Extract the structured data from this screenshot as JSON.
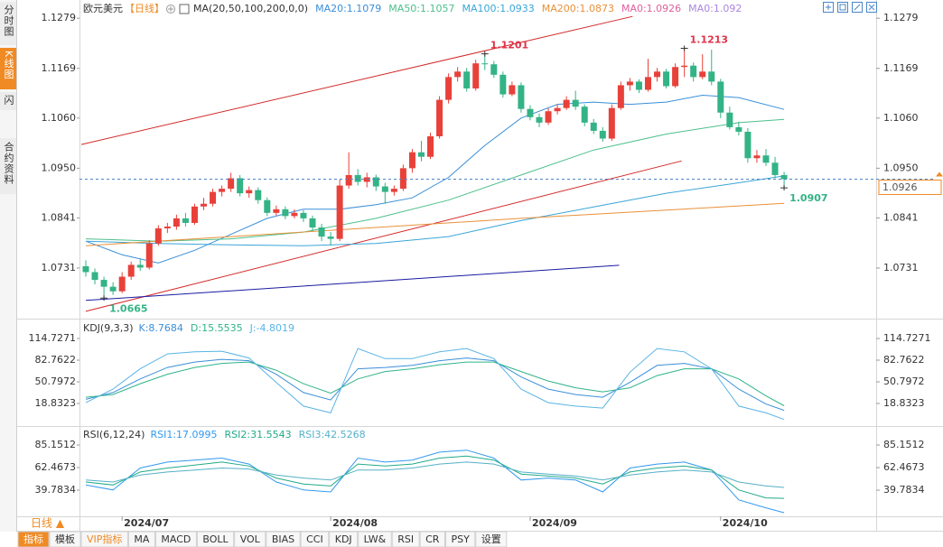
{
  "ui": {
    "sidebar": [
      "分时图",
      "K线图",
      "闪",
      "合约资料"
    ],
    "period_button": "日线 ▲",
    "tabs": [
      "指标",
      "模板",
      "VIP指标",
      "MA",
      "MACD",
      "BOLL",
      "VOL",
      "BIAS",
      "CCI",
      "KDJ",
      "LW&",
      "RSI",
      "CR",
      "PSY",
      "设置"
    ]
  },
  "chart_data": [
    {
      "type": "candlestick",
      "title": "欧元美元",
      "period": "【日线】",
      "indicator": "MA(20,50,100,200,0,0)",
      "up_color": "#e8413a",
      "down_color": "#33b386",
      "ylim": [
        1.0622,
        1.1319
      ],
      "yticks": [
        1.1279,
        1.1169,
        {
          "value": 1.106,
          "label": "1.1060"
        },
        {
          "value": 1.095,
          "label": "1.0950"
        },
        1.0841,
        1.0731
      ],
      "categories": [
        null,
        null,
        null,
        null,
        "2024/07",
        null,
        null,
        null,
        null,
        null,
        null,
        null,
        null,
        null,
        null,
        null,
        null,
        null,
        null,
        null,
        null,
        null,
        null,
        null,
        null,
        null,
        null,
        "2024/08",
        null,
        null,
        null,
        null,
        null,
        null,
        null,
        null,
        null,
        null,
        null,
        null,
        null,
        null,
        null,
        null,
        null,
        null,
        null,
        null,
        null,
        "2024/09",
        null,
        null,
        null,
        null,
        null,
        null,
        null,
        null,
        null,
        null,
        null,
        null,
        null,
        null,
        null,
        null,
        null,
        null,
        null,
        null,
        "2024/10",
        null,
        null,
        null,
        null,
        null,
        null,
        null
      ],
      "candles": [
        [
          1.0735,
          1.0748,
          1.0712,
          1.0722
        ],
        [
          1.0722,
          1.073,
          1.0695,
          1.0705
        ],
        [
          1.0705,
          1.0712,
          1.0665,
          1.069
        ],
        [
          1.069,
          1.07,
          1.0672,
          1.068
        ],
        [
          1.068,
          1.0722,
          1.0676,
          1.0712
        ],
        [
          1.0712,
          1.0745,
          1.0705,
          1.0738
        ],
        [
          1.0738,
          1.075,
          1.0725,
          1.0732
        ],
        [
          1.0732,
          1.0792,
          1.0728,
          1.0785
        ],
        [
          1.0785,
          1.0825,
          1.078,
          1.0818
        ],
        [
          1.0818,
          1.083,
          1.0808,
          1.0822
        ],
        [
          1.0822,
          1.0848,
          1.0815,
          1.084
        ],
        [
          1.084,
          1.0852,
          1.0822,
          1.083
        ],
        [
          1.083,
          1.0872,
          1.0826,
          1.0866
        ],
        [
          1.0866,
          1.0885,
          1.0858,
          1.0872
        ],
        [
          1.0872,
          1.0905,
          1.0866,
          1.0898
        ],
        [
          1.0898,
          1.0912,
          1.0888,
          1.0905
        ],
        [
          1.0905,
          1.094,
          1.0898,
          1.0928
        ],
        [
          1.0928,
          1.0935,
          1.0888,
          1.0895
        ],
        [
          1.0895,
          1.091,
          1.0885,
          1.0902
        ],
        [
          1.0902,
          1.0908,
          1.0872,
          1.088
        ],
        [
          1.088,
          1.0886,
          1.0845,
          1.0852
        ],
        [
          1.0852,
          1.0868,
          1.0846,
          1.086
        ],
        [
          1.086,
          1.0866,
          1.0838,
          1.0845
        ],
        [
          1.0845,
          1.086,
          1.084,
          1.0852
        ],
        [
          1.0852,
          1.0858,
          1.0832,
          1.084
        ],
        [
          1.084,
          1.0846,
          1.0812,
          1.082
        ],
        [
          1.082,
          1.0828,
          1.079,
          1.08
        ],
        [
          1.08,
          1.081,
          1.078,
          1.0795
        ],
        [
          1.0795,
          1.0925,
          1.079,
          1.0912
        ],
        [
          1.0912,
          1.0985,
          1.0905,
          1.0935
        ],
        [
          1.0935,
          1.0948,
          1.0912,
          1.092
        ],
        [
          1.092,
          1.094,
          1.0908,
          1.093
        ],
        [
          1.093,
          1.0936,
          1.09,
          1.091
        ],
        [
          1.091,
          1.0918,
          1.0872,
          1.0898
        ],
        [
          1.0898,
          1.0912,
          1.089,
          1.0905
        ],
        [
          1.0905,
          1.0958,
          1.09,
          1.095
        ],
        [
          1.095,
          1.0992,
          1.094,
          1.0985
        ],
        [
          1.0985,
          1.101,
          1.0965,
          1.0975
        ],
        [
          1.0975,
          1.1028,
          1.097,
          1.102
        ],
        [
          1.102,
          1.1108,
          1.1015,
          1.11
        ],
        [
          1.11,
          1.1158,
          1.1092,
          1.115
        ],
        [
          1.115,
          1.1172,
          1.114,
          1.1162
        ],
        [
          1.1162,
          1.117,
          1.1118,
          1.1125
        ],
        [
          1.1125,
          1.1188,
          1.112,
          1.118
        ],
        [
          1.118,
          1.1201,
          1.1165,
          1.1178
        ],
        [
          1.1178,
          1.1185,
          1.1148,
          1.1155
        ],
        [
          1.1155,
          1.1162,
          1.1105,
          1.1112
        ],
        [
          1.1112,
          1.114,
          1.1108,
          1.1132
        ],
        [
          1.1132,
          1.1138,
          1.1072,
          1.108
        ],
        [
          1.108,
          1.1088,
          1.1055,
          1.1062
        ],
        [
          1.1062,
          1.107,
          1.104,
          1.105
        ],
        [
          1.105,
          1.1082,
          1.1045,
          1.1075
        ],
        [
          1.1075,
          1.109,
          1.1068,
          1.1082
        ],
        [
          1.1082,
          1.1108,
          1.1078,
          1.11
        ],
        [
          1.11,
          1.112,
          1.1078,
          1.1085
        ],
        [
          1.1085,
          1.109,
          1.1042,
          1.105
        ],
        [
          1.105,
          1.1058,
          1.1025,
          1.1032
        ],
        [
          1.1032,
          1.104,
          1.1008,
          1.1015
        ],
        [
          1.1015,
          1.109,
          1.101,
          1.1082
        ],
        [
          1.1082,
          1.114,
          1.1078,
          1.1132
        ],
        [
          1.1132,
          1.1148,
          1.112,
          1.114
        ],
        [
          1.114,
          1.1145,
          1.1115,
          1.1122
        ],
        [
          1.1122,
          1.119,
          1.1118,
          1.115
        ],
        [
          1.115,
          1.117,
          1.114,
          1.1162
        ],
        [
          1.1162,
          1.1168,
          1.1125,
          1.113
        ],
        [
          1.113,
          1.118,
          1.1126,
          1.1172
        ],
        [
          1.1172,
          1.1213,
          1.115,
          1.1175
        ],
        [
          1.1175,
          1.1182,
          1.114,
          1.115
        ],
        [
          1.115,
          1.12,
          1.1145,
          1.1162
        ],
        [
          1.1162,
          1.121,
          1.1132,
          1.114
        ],
        [
          1.114,
          1.1146,
          1.106,
          1.1072
        ],
        [
          1.1072,
          1.1085,
          1.1035,
          1.104
        ],
        [
          1.104,
          1.1052,
          1.1022,
          1.103
        ],
        [
          1.103,
          1.1038,
          1.0962,
          1.0972
        ],
        [
          1.0972,
          1.099,
          1.0962,
          1.0978
        ],
        [
          1.0978,
          1.0992,
          1.0955,
          1.0962
        ],
        [
          1.0962,
          1.0975,
          1.0928,
          1.0935
        ],
        [
          1.0935,
          1.0942,
          1.0907,
          1.0926
        ]
      ],
      "series": [
        {
          "name": "MA20:1.1079",
          "color": "#3a8fd9",
          "x": [
            0,
            4,
            8,
            12,
            16,
            20,
            24,
            28,
            32,
            36,
            40,
            44,
            48,
            52,
            56,
            60,
            64,
            68,
            72,
            77
          ],
          "values": [
            1.079,
            1.076,
            1.0742,
            1.077,
            1.0805,
            1.084,
            1.086,
            1.086,
            1.087,
            1.0885,
            1.093,
            1.1,
            1.106,
            1.109,
            1.1095,
            1.109,
            1.1095,
            1.111,
            1.1105,
            1.1079
          ]
        },
        {
          "name": "MA50:1.1057",
          "color": "#4cbf8c",
          "x": [
            0,
            8,
            16,
            24,
            32,
            40,
            48,
            56,
            64,
            72,
            77
          ],
          "values": [
            1.0795,
            1.079,
            1.0795,
            1.081,
            1.084,
            1.088,
            1.0935,
            1.099,
            1.1025,
            1.105,
            1.1057
          ]
        },
        {
          "name": "MA100:1.0933",
          "color": "#3aa6d8",
          "x": [
            0,
            8,
            16,
            24,
            32,
            40,
            48,
            56,
            64,
            72,
            77
          ],
          "values": [
            1.079,
            1.0785,
            1.0782,
            1.078,
            1.0785,
            1.08,
            1.0835,
            1.0865,
            1.0895,
            1.0918,
            1.0933
          ]
        },
        {
          "name": "MA200:1.0873",
          "color": "#e8913a",
          "x": [
            0,
            16,
            32,
            48,
            64,
            77
          ],
          "values": [
            1.078,
            1.08,
            1.082,
            1.084,
            1.0858,
            1.0873
          ]
        }
      ],
      "extra_legend": [
        {
          "name": "MA0:1.0926",
          "color": "#e0609a"
        },
        {
          "name": "MA0:1.092",
          "color": "#a987e0"
        }
      ],
      "trendlines": [
        {
          "color": "#d42a2a",
          "x": [
            -0.5,
            60.3
          ],
          "values": [
            1.1002,
            1.1283
          ]
        },
        {
          "color": "#d42a2a",
          "x": [
            0,
            65.7
          ],
          "values": [
            1.0636,
            1.0966
          ]
        },
        {
          "color": "#1a1aa0",
          "x": [
            0,
            58.8
          ],
          "values": [
            1.066,
            1.0737
          ]
        }
      ],
      "annotations": [
        {
          "index": 44,
          "value": 1.1201,
          "color": "#e0334a"
        },
        {
          "index": 66,
          "value": 1.1213,
          "color": "#e0334a"
        },
        {
          "index": 2,
          "value": 1.0665,
          "color": "#33b386"
        },
        {
          "index": 77,
          "value": 1.0907,
          "color": "#33b386"
        }
      ],
      "last_price": 1.0926
    },
    {
      "type": "line",
      "title": "KDJ(9,3,3)",
      "ylim": [
        -11.8,
        138.7
      ],
      "yticks": [
        114.7271,
        82.7622,
        50.7972,
        18.8323
      ],
      "x": [
        0,
        3,
        6,
        9,
        12,
        15,
        18,
        21,
        24,
        27,
        30,
        33,
        36,
        39,
        42,
        45,
        48,
        51,
        54,
        57,
        60,
        63,
        66,
        69,
        72,
        75,
        77
      ],
      "series": [
        {
          "name": "K:8.7684",
          "color": "#3b8fd8",
          "values": [
            25,
            35,
            55,
            72,
            80,
            84,
            82,
            62,
            35,
            24,
            70,
            72,
            75,
            82,
            86,
            82,
            58,
            40,
            32,
            28,
            50,
            75,
            78,
            70,
            40,
            18,
            8.7684
          ]
        },
        {
          "name": "D:15.5535",
          "color": "#30b38a",
          "values": [
            28,
            32,
            48,
            62,
            72,
            78,
            80,
            68,
            48,
            34,
            55,
            66,
            70,
            76,
            80,
            80,
            66,
            52,
            42,
            36,
            42,
            60,
            70,
            70,
            55,
            30,
            15.5535
          ]
        },
        {
          "name": "J:-4.8019",
          "color": "#5ab4e5",
          "values": [
            20,
            40,
            70,
            92,
            95,
            96,
            86,
            50,
            15,
            5,
            100,
            85,
            85,
            95,
            100,
            85,
            40,
            20,
            15,
            12,
            65,
            100,
            95,
            70,
            15,
            5,
            -4.8019
          ]
        }
      ]
    },
    {
      "type": "line",
      "title": "RSI(6,12,24)",
      "ylim": [
        13.5,
        101.5
      ],
      "yticks": [
        85.1512,
        62.4673,
        39.7834
      ],
      "x": [
        0,
        3,
        6,
        9,
        12,
        15,
        18,
        21,
        24,
        27,
        30,
        33,
        36,
        39,
        42,
        45,
        48,
        51,
        54,
        57,
        60,
        63,
        66,
        69,
        72,
        75,
        77
      ],
      "series": [
        {
          "name": "RSI1:17.0995",
          "color": "#3399ee",
          "values": [
            45,
            40,
            62,
            68,
            70,
            72,
            66,
            48,
            40,
            38,
            72,
            68,
            70,
            78,
            80,
            72,
            50,
            52,
            50,
            38,
            62,
            66,
            68,
            60,
            30,
            22,
            17.0995
          ]
        },
        {
          "name": "RSI2:31.5543",
          "color": "#22aa88",
          "values": [
            48,
            45,
            58,
            62,
            65,
            68,
            64,
            52,
            46,
            44,
            66,
            64,
            66,
            72,
            74,
            70,
            56,
            54,
            52,
            46,
            58,
            62,
            64,
            60,
            40,
            32,
            31.5543
          ]
        },
        {
          "name": "RSI3:42.5268",
          "color": "#55b0c8",
          "values": [
            50,
            48,
            55,
            58,
            60,
            62,
            61,
            55,
            52,
            50,
            60,
            60,
            62,
            66,
            68,
            66,
            58,
            56,
            54,
            50,
            55,
            58,
            60,
            58,
            48,
            44,
            42.5268
          ]
        }
      ]
    }
  ]
}
